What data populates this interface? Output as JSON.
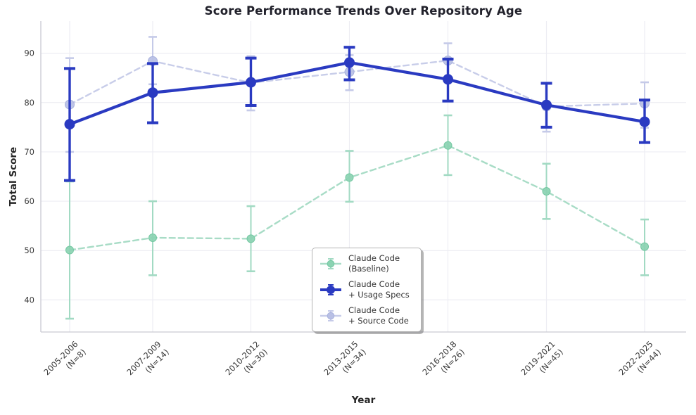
{
  "chart_data": {
    "type": "line",
    "title": "Score Performance Trends Over Repository Age",
    "xlabel": "Year",
    "ylabel": "Total Score",
    "ylim": [
      33.5,
      96.5
    ],
    "yticks": [
      40,
      50,
      60,
      70,
      80,
      90
    ],
    "grid": true,
    "legend_position": "lower center inside plot",
    "categories": [
      {
        "label": "2005-2006",
        "sublabel": "(N=8)"
      },
      {
        "label": "2007-2009",
        "sublabel": "(N=14)"
      },
      {
        "label": "2010-2012",
        "sublabel": "(N=30)"
      },
      {
        "label": "2013-2015",
        "sublabel": "(N=34)"
      },
      {
        "label": "2016-2018",
        "sublabel": "(N=26)"
      },
      {
        "label": "2019-2021",
        "sublabel": "(N=45)"
      },
      {
        "label": "2022-2025",
        "sublabel": "(N=44)"
      }
    ],
    "series": [
      {
        "name_lines": [
          "Claude Code",
          "(Baseline)"
        ],
        "style": "dashed",
        "line_color": "#a8dcc6",
        "marker_color": "#8bd3b2",
        "marker_edge_color": "#74c8a2",
        "error_color": "#a2dac3",
        "values": [
          50.1,
          52.6,
          52.4,
          64.8,
          71.3,
          62.0,
          50.8
        ],
        "err_low": [
          36.2,
          45.0,
          45.8,
          59.9,
          65.3,
          56.4,
          45.0
        ],
        "err_high": [
          64.0,
          60.0,
          59.0,
          70.2,
          77.4,
          67.6,
          56.3
        ]
      },
      {
        "name_lines": [
          "Claude Code",
          "+ Usage Specs"
        ],
        "style": "solid",
        "line_color": "#2a3ac1",
        "marker_color": "#2a3ac1",
        "marker_edge_color": "#2a3ac1",
        "error_color": "#2a3ac1",
        "values": [
          75.6,
          82.0,
          84.1,
          88.1,
          84.7,
          79.5,
          76.1
        ],
        "err_low": [
          64.2,
          75.9,
          79.4,
          84.6,
          80.3,
          75.0,
          71.9
        ],
        "err_high": [
          86.9,
          87.9,
          89.0,
          91.2,
          88.8,
          83.9,
          80.5
        ]
      },
      {
        "name_lines": [
          "Claude Code",
          "+ Source Code"
        ],
        "style": "dashed",
        "line_color": "#c8cde9",
        "marker_color": "#b9c0e5",
        "marker_edge_color": "#a9b2dd",
        "error_color": "#c5cae8",
        "values": [
          79.6,
          88.4,
          84.0,
          86.2,
          88.5,
          79.2,
          79.8
        ],
        "err_low": [
          70.0,
          83.7,
          78.4,
          82.5,
          85.0,
          74.1,
          74.9
        ],
        "err_high": [
          89.0,
          93.3,
          89.4,
          89.6,
          92.0,
          84.0,
          84.1
        ]
      }
    ]
  }
}
